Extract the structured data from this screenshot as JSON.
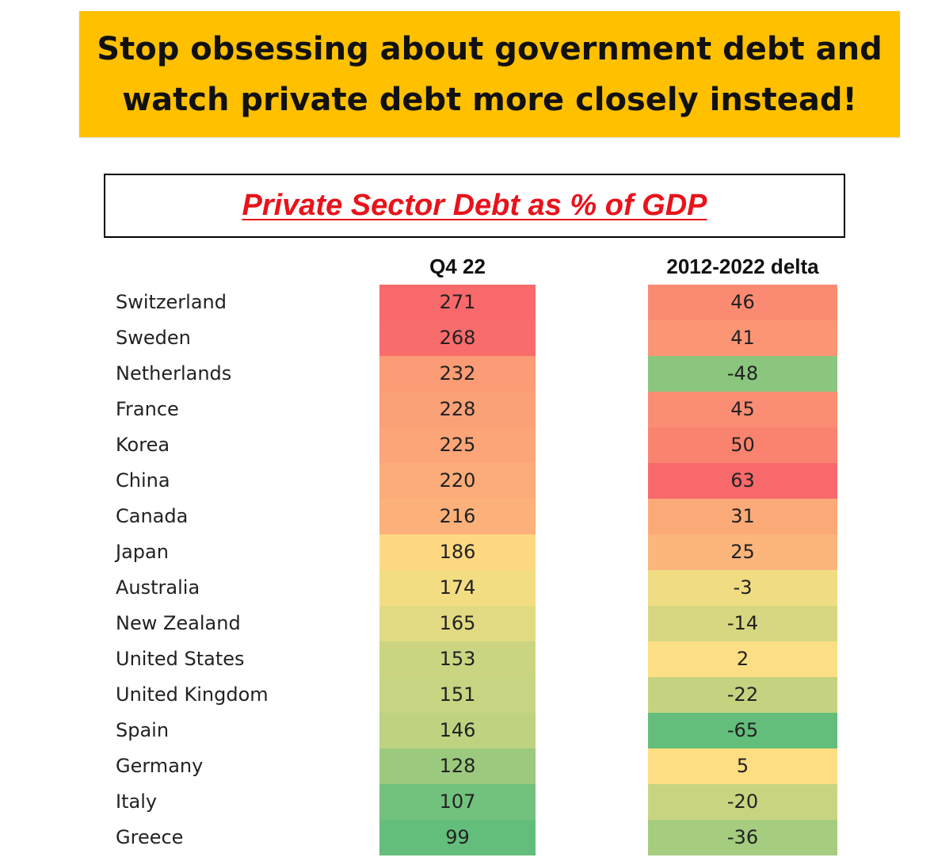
{
  "banner": {
    "line1": "Stop obsessing about government debt and",
    "line2": "watch private debt more closely instead!",
    "color": "#ffc000"
  },
  "chart_data": {
    "type": "table",
    "title": "Private Sector Debt as % of GDP",
    "columns": [
      "Q4 22",
      "2012-2022 delta"
    ],
    "rows": [
      {
        "country": "Switzerland",
        "q4_22": "271",
        "delta": "46"
      },
      {
        "country": "Sweden",
        "q4_22": "268",
        "delta": "41"
      },
      {
        "country": "Netherlands",
        "q4_22": "232",
        "delta": "-48"
      },
      {
        "country": "France",
        "q4_22": "228",
        "delta": "45"
      },
      {
        "country": "Korea",
        "q4_22": "225",
        "delta": "50"
      },
      {
        "country": "China",
        "q4_22": "220",
        "delta": "63"
      },
      {
        "country": "Canada",
        "q4_22": "216",
        "delta": "31"
      },
      {
        "country": "Japan",
        "q4_22": "186",
        "delta": "25"
      },
      {
        "country": "Australia",
        "q4_22": "174",
        "delta": "-3"
      },
      {
        "country": "New Zealand",
        "q4_22": "165",
        "delta": "-14"
      },
      {
        "country": "United States",
        "q4_22": "153",
        "delta": "2"
      },
      {
        "country": "United Kingdom",
        "q4_22": "151",
        "delta": "-22"
      },
      {
        "country": "Spain",
        "q4_22": "146",
        "delta": "-65"
      },
      {
        "country": "Germany",
        "q4_22": "128",
        "delta": "5"
      },
      {
        "country": "Italy",
        "q4_22": "107",
        "delta": "-20"
      },
      {
        "country": "Greece",
        "q4_22": "99",
        "delta": "-36"
      }
    ],
    "color_scale": {
      "high": "#f8696b",
      "mid": "#ffe084",
      "low": "#63be7b"
    }
  }
}
